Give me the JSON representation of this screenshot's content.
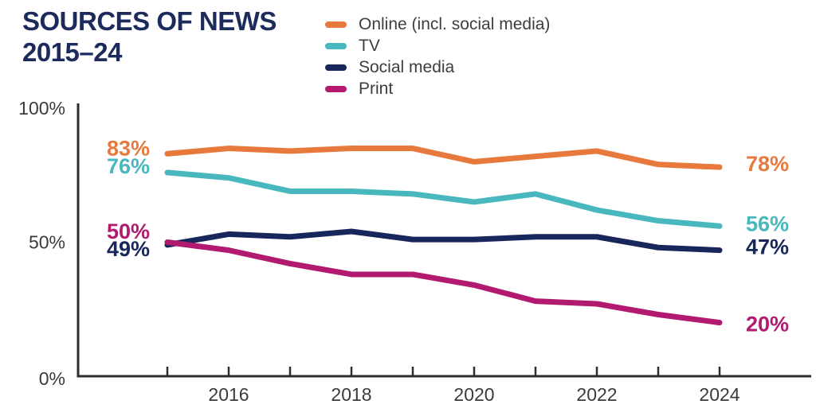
{
  "title": {
    "line1": "SOURCES OF NEWS",
    "line2": "2015–24"
  },
  "colors": {
    "title": "#1d2b5c",
    "axis": "#2e2e2e",
    "axis_tick_text": "#3a3a3a",
    "legend_text": "#3d3d3d",
    "background": "#ffffff"
  },
  "chart_data": {
    "type": "line",
    "title": "SOURCES OF NEWS 2015–24",
    "x": [
      2015,
      2016,
      2017,
      2018,
      2019,
      2020,
      2021,
      2022,
      2023,
      2024
    ],
    "x_tick_labels": [
      "2016",
      "2018",
      "2020",
      "2022",
      "2024"
    ],
    "x_labeled_years": [
      2016,
      2018,
      2020,
      2022,
      2024
    ],
    "y_ticks": [
      {
        "label": "100%",
        "value": 100
      },
      {
        "label": "50%",
        "value": 50
      },
      {
        "label": "0%",
        "value": 0
      }
    ],
    "ylim": [
      0,
      100
    ],
    "grid": false,
    "legend_position": "top-center",
    "series": [
      {
        "name": "Online (incl. social media)",
        "color": "#e8793d",
        "values": [
          83,
          85,
          84,
          85,
          85,
          80,
          82,
          84,
          79,
          78
        ],
        "start_label": "83%",
        "end_label": "78%"
      },
      {
        "name": "TV",
        "color": "#49b7be",
        "values": [
          76,
          74,
          69,
          69,
          68,
          65,
          68,
          62,
          58,
          56
        ],
        "start_label": "76%",
        "end_label": "56%"
      },
      {
        "name": "Social media",
        "color": "#17265b",
        "values": [
          49,
          53,
          52,
          54,
          51,
          51,
          52,
          52,
          48,
          47
        ],
        "start_label": "49%",
        "end_label": "47%"
      },
      {
        "name": "Print",
        "color": "#b11a6f",
        "values": [
          50,
          47,
          42,
          38,
          38,
          34,
          28,
          27,
          23,
          20
        ],
        "start_label": "50%",
        "end_label": "20%"
      }
    ]
  }
}
